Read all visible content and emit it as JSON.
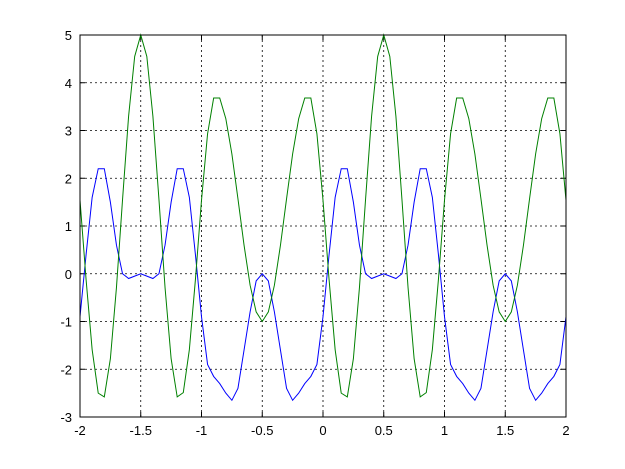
{
  "chart_data": {
    "type": "line",
    "x": [
      -2,
      -1.95,
      -1.9,
      -1.85,
      -1.8,
      -1.75,
      -1.7,
      -1.65,
      -1.6,
      -1.55,
      -1.5,
      -1.45,
      -1.4,
      -1.35,
      -1.3,
      -1.25,
      -1.2,
      -1.15,
      -1.1,
      -1.05,
      -1,
      -0.95,
      -0.9,
      -0.85,
      -0.8,
      -0.75,
      -0.7,
      -0.65,
      -0.6,
      -0.55,
      -0.5,
      -0.45,
      -0.4,
      -0.35,
      -0.3,
      -0.25,
      -0.2,
      -0.15,
      -0.1,
      -0.05,
      0,
      0.05,
      0.1,
      0.15,
      0.2,
      0.25,
      0.3,
      0.35,
      0.4,
      0.45,
      0.5,
      0.55,
      0.6,
      0.65,
      0.7,
      0.75,
      0.8,
      0.85,
      0.9,
      0.95,
      1,
      1.05,
      1.1,
      1.15,
      1.2,
      1.25,
      1.3,
      1.35,
      1.4,
      1.45,
      1.5,
      1.55,
      1.6,
      1.65,
      1.7,
      1.75,
      1.8,
      1.85,
      1.9,
      1.95,
      2
    ],
    "series": [
      {
        "color": "#0000ff",
        "values": [
          -0.9,
          0.4,
          1.6,
          2.2,
          2.2,
          1.5,
          0.6,
          0.0,
          -0.1,
          -0.05,
          0.0,
          -0.05,
          -0.1,
          0.0,
          0.6,
          1.5,
          2.2,
          2.2,
          1.6,
          0.4,
          -0.9,
          -1.9,
          -2.15,
          -2.3,
          -2.5,
          -2.65,
          -2.4,
          -1.6,
          -0.8,
          -0.15,
          0.0,
          -0.15,
          -0.8,
          -1.6,
          -2.4,
          -2.65,
          -2.5,
          -2.3,
          -2.15,
          -1.9,
          -0.9,
          0.4,
          1.6,
          2.2,
          2.2,
          1.5,
          0.6,
          0.0,
          -0.1,
          -0.05,
          0.0,
          -0.05,
          -0.1,
          0.0,
          0.6,
          1.5,
          2.2,
          2.2,
          1.6,
          0.4,
          -0.9,
          -1.9,
          -2.15,
          -2.3,
          -2.5,
          -2.65,
          -2.4,
          -1.6,
          -0.8,
          -0.15,
          0.0,
          -0.15,
          -0.8,
          -1.6,
          -2.4,
          -2.65,
          -2.5,
          -2.3,
          -2.15,
          -1.9,
          -0.9
        ]
      },
      {
        "color": "#008000",
        "values": [
          1.54,
          -0.12,
          -1.59,
          -2.5,
          -2.58,
          -1.78,
          -0.29,
          1.55,
          3.3,
          4.55,
          5.0,
          4.55,
          3.3,
          1.55,
          -0.29,
          -1.78,
          -2.58,
          -2.49,
          -1.59,
          -0.12,
          1.54,
          2.93,
          3.68,
          3.68,
          3.25,
          2.51,
          1.57,
          0.6,
          -0.24,
          -0.8,
          -1.0,
          -0.8,
          -0.24,
          0.6,
          1.57,
          2.51,
          3.25,
          3.68,
          3.68,
          2.93,
          1.54,
          -0.12,
          -1.59,
          -2.5,
          -2.58,
          -1.78,
          -0.29,
          1.55,
          3.3,
          4.55,
          5.0,
          4.55,
          3.3,
          1.55,
          -0.29,
          -1.78,
          -2.58,
          -2.49,
          -1.59,
          -0.12,
          1.54,
          2.93,
          3.68,
          3.68,
          3.25,
          2.51,
          1.57,
          0.6,
          -0.24,
          -0.8,
          -1.0,
          -0.8,
          -0.24,
          0.6,
          1.57,
          2.51,
          3.25,
          3.68,
          3.68,
          2.93,
          1.54
        ]
      }
    ],
    "xlim": [
      -2,
      2
    ],
    "ylim": [
      -3,
      5
    ],
    "xticks": [
      -2,
      -1.5,
      -1,
      -0.5,
      0,
      0.5,
      1,
      1.5,
      2
    ],
    "yticks": [
      -3,
      -2,
      -1,
      0,
      1,
      2,
      3,
      4,
      5
    ],
    "grid": true
  }
}
